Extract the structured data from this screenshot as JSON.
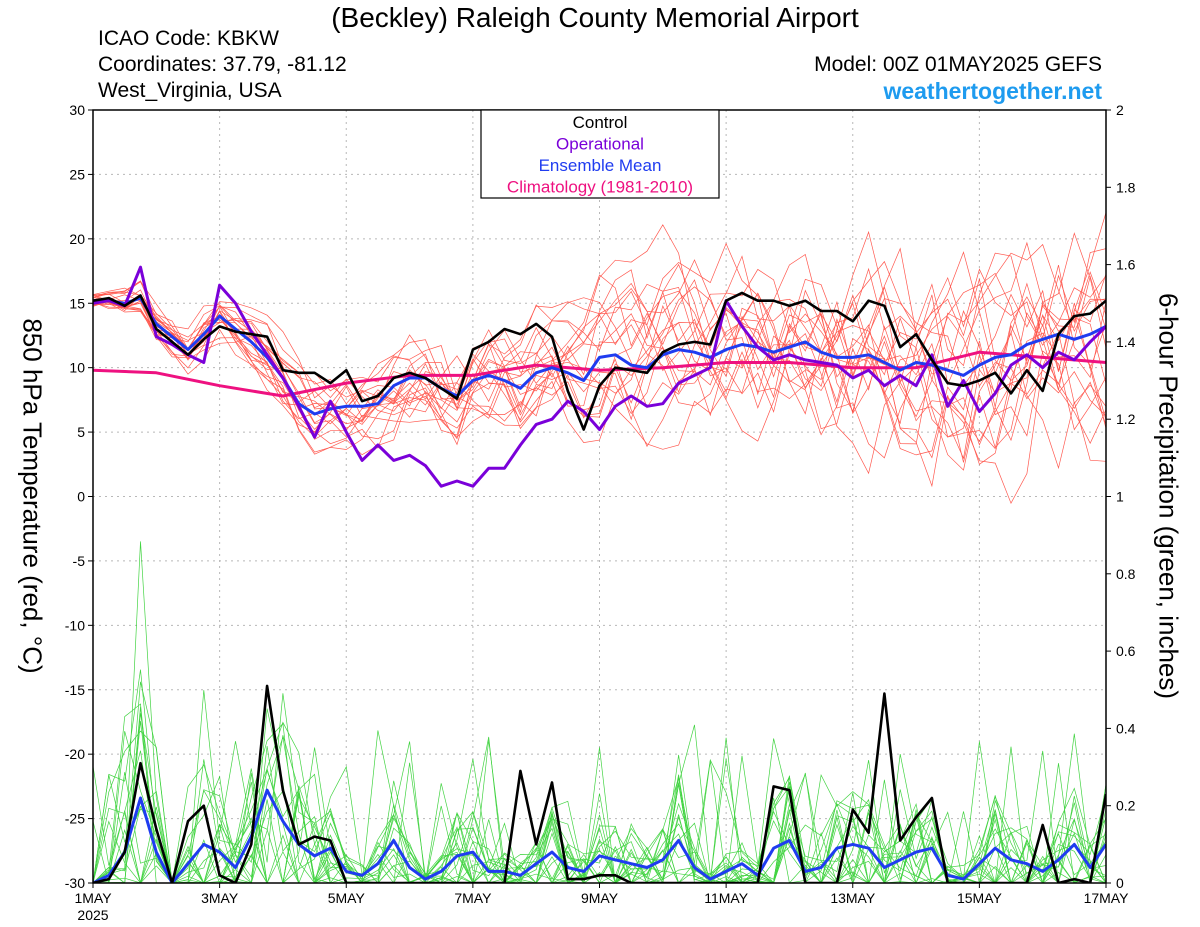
{
  "header": {
    "title": "(Beckley) Raleigh County Memorial Airport",
    "icao": "ICAO Code: KBKW",
    "coords": "Coordinates: 37.79, -81.12",
    "region": "West_Virginia, USA",
    "model": "Model: 00Z 01MAY2025 GEFS",
    "site": "weathertogether.net"
  },
  "colors": {
    "control": "#000000",
    "operational": "#7a00d9",
    "ensemble_mean": "#1f3cf0",
    "climatology": "#ee1180",
    "members_temp": "#ff3b30",
    "members_precip": "#22cc22",
    "site": "#1e9bef"
  },
  "chart_data": {
    "type": "line",
    "title": "(Beckley) Raleigh County Memorial Airport",
    "ylabel": "850 hPa Temperature (red, °C)",
    "ylabel2": "6-hour Precipitation (green, inches)",
    "xlim": [
      0,
      16
    ],
    "ylim": [
      -30,
      30
    ],
    "ylim2": [
      0,
      2
    ],
    "grid": true,
    "legend_placement": "top-center",
    "yticks": [
      "30",
      "25",
      "20",
      "15",
      "10",
      "5",
      "0",
      "-5",
      "-10",
      "-15",
      "-20",
      "-25",
      "-30"
    ],
    "yticks2": [
      "2",
      "1.8",
      "1.6",
      "1.4",
      "1.2",
      "1",
      "0.8",
      "0.6",
      "0.4",
      "0.2",
      "0"
    ],
    "xticks": [
      {
        "x": 0,
        "label": "1MAY",
        "sub": "2025"
      },
      {
        "x": 2,
        "label": "3MAY"
      },
      {
        "x": 4,
        "label": "5MAY"
      },
      {
        "x": 6,
        "label": "7MAY"
      },
      {
        "x": 8,
        "label": "9MAY"
      },
      {
        "x": 10,
        "label": "11MAY"
      },
      {
        "x": 12,
        "label": "13MAY"
      },
      {
        "x": 14,
        "label": "15MAY"
      },
      {
        "x": 16,
        "label": "17MAY"
      }
    ],
    "legend": [
      "Control",
      "Operational",
      "Ensemble Mean",
      "Climatology (1981-2010)"
    ],
    "temperature": {
      "control": [
        [
          0,
          15.2
        ],
        [
          0.25,
          15.4
        ],
        [
          0.5,
          14.8
        ],
        [
          0.75,
          15.6
        ],
        [
          1,
          13
        ],
        [
          1.25,
          12
        ],
        [
          1.5,
          11
        ],
        [
          1.75,
          12.2
        ],
        [
          2,
          13.2
        ],
        [
          2.25,
          12.8
        ],
        [
          2.5,
          12.6
        ],
        [
          2.75,
          12.4
        ],
        [
          3,
          9.8
        ],
        [
          3.25,
          9.6
        ],
        [
          3.5,
          9.6
        ],
        [
          3.75,
          8.8
        ],
        [
          4,
          9.8
        ],
        [
          4.25,
          7.4
        ],
        [
          4.5,
          7.8
        ],
        [
          4.75,
          9.2
        ],
        [
          5,
          9.6
        ],
        [
          5.25,
          9.2
        ],
        [
          5.5,
          8.4
        ],
        [
          5.75,
          7.6
        ],
        [
          6,
          11.4
        ],
        [
          6.25,
          12
        ],
        [
          6.5,
          13
        ],
        [
          6.75,
          12.6
        ],
        [
          7,
          13.4
        ],
        [
          7.25,
          12.4
        ],
        [
          7.5,
          8.2
        ],
        [
          7.75,
          5.2
        ],
        [
          8,
          8.6
        ],
        [
          8.25,
          10
        ],
        [
          8.5,
          9.8
        ],
        [
          8.75,
          9.6
        ],
        [
          9,
          11.2
        ],
        [
          9.25,
          11.8
        ],
        [
          9.5,
          12
        ],
        [
          9.75,
          11.8
        ],
        [
          10,
          15.2
        ],
        [
          10.25,
          15.8
        ],
        [
          10.5,
          15.2
        ],
        [
          10.75,
          15.2
        ],
        [
          11,
          14.8
        ],
        [
          11.25,
          15.2
        ],
        [
          11.5,
          14.4
        ],
        [
          11.75,
          14.4
        ],
        [
          12,
          13.6
        ],
        [
          12.25,
          15.2
        ],
        [
          12.5,
          14.8
        ],
        [
          12.75,
          11.6
        ],
        [
          13,
          12.6
        ],
        [
          13.25,
          10.6
        ],
        [
          13.5,
          8.8
        ],
        [
          13.75,
          8.6
        ],
        [
          14,
          9
        ],
        [
          14.25,
          9.6
        ],
        [
          14.5,
          8
        ],
        [
          14.75,
          9.8
        ],
        [
          15,
          8.2
        ],
        [
          15.25,
          12.6
        ],
        [
          15.5,
          14
        ],
        [
          15.75,
          14.2
        ],
        [
          16,
          15.2
        ]
      ],
      "operational": [
        [
          0,
          15
        ],
        [
          0.25,
          15.2
        ],
        [
          0.5,
          14.8
        ],
        [
          0.75,
          17.8
        ],
        [
          1,
          12.4
        ],
        [
          1.25,
          11.8
        ],
        [
          1.5,
          11
        ],
        [
          1.75,
          10.4
        ],
        [
          2,
          16.4
        ],
        [
          2.25,
          15
        ],
        [
          2.5,
          12.8
        ],
        [
          2.75,
          11
        ],
        [
          3,
          9.2
        ],
        [
          3.25,
          7
        ],
        [
          3.5,
          4.6
        ],
        [
          3.75,
          7.4
        ],
        [
          4,
          5
        ],
        [
          4.25,
          2.8
        ],
        [
          4.5,
          4
        ],
        [
          4.75,
          2.8
        ],
        [
          5,
          3.2
        ],
        [
          5.25,
          2.4
        ],
        [
          5.5,
          0.8
        ],
        [
          5.75,
          1.2
        ],
        [
          6,
          0.8
        ],
        [
          6.25,
          2.2
        ],
        [
          6.5,
          2.2
        ],
        [
          6.75,
          4
        ],
        [
          7,
          5.6
        ],
        [
          7.25,
          6
        ],
        [
          7.5,
          7.4
        ],
        [
          7.75,
          6.6
        ],
        [
          8,
          5.2
        ],
        [
          8.25,
          7
        ],
        [
          8.5,
          7.8
        ],
        [
          8.75,
          7
        ],
        [
          9,
          7.2
        ],
        [
          9.25,
          8.8
        ],
        [
          9.5,
          9.4
        ],
        [
          9.75,
          10
        ],
        [
          10,
          15.2
        ],
        [
          10.25,
          13.2
        ],
        [
          10.5,
          11.6
        ],
        [
          10.75,
          10.6
        ],
        [
          11,
          11
        ],
        [
          11.25,
          10.6
        ],
        [
          11.5,
          10.4
        ],
        [
          11.75,
          10.2
        ],
        [
          12,
          9.2
        ],
        [
          12.25,
          9.8
        ],
        [
          12.5,
          8.6
        ],
        [
          12.75,
          9.4
        ],
        [
          13,
          8.6
        ],
        [
          13.25,
          11
        ],
        [
          13.5,
          7
        ],
        [
          13.75,
          9
        ],
        [
          14,
          6.6
        ],
        [
          14.25,
          8
        ],
        [
          14.5,
          10.2
        ],
        [
          14.75,
          11
        ],
        [
          15,
          10
        ],
        [
          15.25,
          11.2
        ],
        [
          15.5,
          10.6
        ],
        [
          15.75,
          12
        ],
        [
          16,
          13.2
        ]
      ],
      "ensemble_mean": [
        [
          0,
          15.2
        ],
        [
          0.25,
          15.2
        ],
        [
          0.5,
          15
        ],
        [
          0.75,
          15.4
        ],
        [
          1,
          13.4
        ],
        [
          1.25,
          12.4
        ],
        [
          1.5,
          11.4
        ],
        [
          1.75,
          12.6
        ],
        [
          2,
          14
        ],
        [
          2.25,
          13
        ],
        [
          2.5,
          12
        ],
        [
          2.75,
          10.8
        ],
        [
          3,
          9.2
        ],
        [
          3.25,
          7.2
        ],
        [
          3.5,
          6.4
        ],
        [
          3.75,
          6.8
        ],
        [
          4,
          7
        ],
        [
          4.25,
          7
        ],
        [
          4.5,
          7.2
        ],
        [
          4.75,
          8.6
        ],
        [
          5,
          9.2
        ],
        [
          5.25,
          9.2
        ],
        [
          5.5,
          8.4
        ],
        [
          5.75,
          7.8
        ],
        [
          6,
          9
        ],
        [
          6.25,
          9.4
        ],
        [
          6.5,
          9
        ],
        [
          6.75,
          8.4
        ],
        [
          7,
          9.6
        ],
        [
          7.25,
          10
        ],
        [
          7.5,
          9.6
        ],
        [
          7.75,
          9
        ],
        [
          8,
          10.8
        ],
        [
          8.25,
          11
        ],
        [
          8.5,
          10.2
        ],
        [
          8.75,
          10
        ],
        [
          9,
          11
        ],
        [
          9.25,
          11.4
        ],
        [
          9.5,
          11.2
        ],
        [
          9.75,
          10.8
        ],
        [
          10,
          11.4
        ],
        [
          10.25,
          11.8
        ],
        [
          10.5,
          11.6
        ],
        [
          10.75,
          11.2
        ],
        [
          11,
          11.6
        ],
        [
          11.25,
          12
        ],
        [
          11.5,
          11.2
        ],
        [
          11.75,
          10.8
        ],
        [
          12,
          10.8
        ],
        [
          12.25,
          11
        ],
        [
          12.5,
          10.4
        ],
        [
          12.75,
          9.8
        ],
        [
          13,
          10.4
        ],
        [
          13.25,
          10.2
        ],
        [
          13.5,
          9.8
        ],
        [
          13.75,
          9.4
        ],
        [
          14,
          10.2
        ],
        [
          14.25,
          10.8
        ],
        [
          14.5,
          11
        ],
        [
          14.75,
          11.8
        ],
        [
          15,
          12.2
        ],
        [
          15.25,
          12.6
        ],
        [
          15.5,
          12.2
        ],
        [
          15.75,
          12.6
        ],
        [
          16,
          13.2
        ]
      ],
      "climatology": [
        [
          0,
          9.8
        ],
        [
          1,
          9.6
        ],
        [
          2,
          8.6
        ],
        [
          3,
          7.8
        ],
        [
          4,
          8.8
        ],
        [
          5,
          9.4
        ],
        [
          6,
          9.4
        ],
        [
          7,
          10.2
        ],
        [
          8,
          9.8
        ],
        [
          9,
          10
        ],
        [
          10,
          10.4
        ],
        [
          11,
          10.4
        ],
        [
          12,
          10
        ],
        [
          13,
          10
        ],
        [
          14,
          11.2
        ],
        [
          15,
          10.8
        ],
        [
          16,
          10.4
        ]
      ]
    },
    "precipitation": {
      "control": [
        [
          0,
          0
        ],
        [
          0.25,
          0.01
        ],
        [
          0.5,
          0.08
        ],
        [
          0.75,
          0.31
        ],
        [
          1,
          0.14
        ],
        [
          1.25,
          0
        ],
        [
          1.5,
          0.16
        ],
        [
          1.75,
          0.2
        ],
        [
          2,
          0.02
        ],
        [
          2.25,
          0
        ],
        [
          2.5,
          0.1
        ],
        [
          2.75,
          0.51
        ],
        [
          3,
          0.24
        ],
        [
          3.25,
          0.1
        ],
        [
          3.5,
          0.12
        ],
        [
          3.75,
          0.11
        ],
        [
          4,
          0
        ],
        [
          4.25,
          0
        ],
        [
          4.5,
          0
        ],
        [
          4.75,
          0
        ],
        [
          5,
          0
        ],
        [
          5.25,
          0
        ],
        [
          5.5,
          0
        ],
        [
          5.75,
          0
        ],
        [
          6,
          0
        ],
        [
          6.25,
          0
        ],
        [
          6.5,
          0
        ],
        [
          6.75,
          0.29
        ],
        [
          7,
          0.1
        ],
        [
          7.25,
          0.26
        ],
        [
          7.5,
          0.01
        ],
        [
          7.75,
          0.01
        ],
        [
          8,
          0.02
        ],
        [
          8.25,
          0.02
        ],
        [
          8.5,
          0
        ],
        [
          8.75,
          0
        ],
        [
          9,
          0
        ],
        [
          9.25,
          0
        ],
        [
          9.5,
          0
        ],
        [
          9.75,
          0
        ],
        [
          10,
          0
        ],
        [
          10.25,
          0
        ],
        [
          10.5,
          0
        ],
        [
          10.75,
          0.25
        ],
        [
          11,
          0.24
        ],
        [
          11.25,
          0
        ],
        [
          11.5,
          0
        ],
        [
          11.75,
          0
        ],
        [
          12,
          0.19
        ],
        [
          12.25,
          0.13
        ],
        [
          12.5,
          0.49
        ],
        [
          12.75,
          0.11
        ],
        [
          13,
          0.17
        ],
        [
          13.25,
          0.22
        ],
        [
          13.5,
          0
        ],
        [
          13.75,
          0
        ],
        [
          14,
          0
        ],
        [
          14.25,
          0
        ],
        [
          14.5,
          0
        ],
        [
          14.75,
          0
        ],
        [
          15,
          0.15
        ],
        [
          15.25,
          0
        ],
        [
          15.5,
          0.01
        ],
        [
          15.75,
          0
        ],
        [
          16,
          0.23
        ]
      ],
      "ensemble_mean": [
        [
          0,
          0
        ],
        [
          0.25,
          0.02
        ],
        [
          0.5,
          0.08
        ],
        [
          0.75,
          0.22
        ],
        [
          1,
          0.08
        ],
        [
          1.25,
          0
        ],
        [
          1.5,
          0.05
        ],
        [
          1.75,
          0.1
        ],
        [
          2,
          0.08
        ],
        [
          2.25,
          0.04
        ],
        [
          2.5,
          0.12
        ],
        [
          2.75,
          0.24
        ],
        [
          3,
          0.16
        ],
        [
          3.25,
          0.1
        ],
        [
          3.5,
          0.07
        ],
        [
          3.75,
          0.09
        ],
        [
          4,
          0.03
        ],
        [
          4.25,
          0.02
        ],
        [
          4.5,
          0.05
        ],
        [
          4.75,
          0.11
        ],
        [
          5,
          0.04
        ],
        [
          5.25,
          0.01
        ],
        [
          5.5,
          0.03
        ],
        [
          5.75,
          0.07
        ],
        [
          6,
          0.08
        ],
        [
          6.25,
          0.03
        ],
        [
          6.5,
          0.03
        ],
        [
          6.75,
          0.02
        ],
        [
          7,
          0.05
        ],
        [
          7.25,
          0.08
        ],
        [
          7.5,
          0.04
        ],
        [
          7.75,
          0.03
        ],
        [
          8,
          0.07
        ],
        [
          8.25,
          0.06
        ],
        [
          8.5,
          0.05
        ],
        [
          8.75,
          0.04
        ],
        [
          9,
          0.06
        ],
        [
          9.25,
          0.11
        ],
        [
          9.5,
          0.04
        ],
        [
          9.75,
          0.01
        ],
        [
          10,
          0.03
        ],
        [
          10.25,
          0.05
        ],
        [
          10.5,
          0.02
        ],
        [
          10.75,
          0.09
        ],
        [
          11,
          0.11
        ],
        [
          11.25,
          0.03
        ],
        [
          11.5,
          0.04
        ],
        [
          11.75,
          0.09
        ],
        [
          12,
          0.1
        ],
        [
          12.25,
          0.09
        ],
        [
          12.5,
          0.04
        ],
        [
          12.75,
          0.06
        ],
        [
          13,
          0.08
        ],
        [
          13.25,
          0.09
        ],
        [
          13.5,
          0.02
        ],
        [
          13.75,
          0.01
        ],
        [
          14,
          0.05
        ],
        [
          14.25,
          0.09
        ],
        [
          14.5,
          0.06
        ],
        [
          14.75,
          0.05
        ],
        [
          15,
          0.03
        ],
        [
          15.25,
          0.06
        ],
        [
          15.5,
          0.1
        ],
        [
          15.75,
          0.04
        ],
        [
          16,
          0.1
        ]
      ]
    }
  }
}
